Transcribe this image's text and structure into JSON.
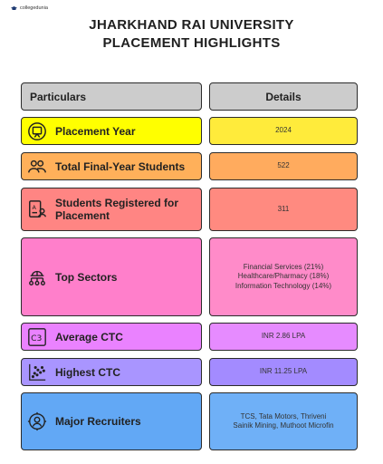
{
  "brand": "collegedunia",
  "title": {
    "line1": "JHARKHAND RAI UNIVERSITY",
    "line2": "PLACEMENT HIGHLIGHTS"
  },
  "header": {
    "left": "Particulars",
    "right": "Details"
  },
  "rows": [
    {
      "label": "Placement Year",
      "value": "2024",
      "icon": "presentation-icon",
      "color_left": "#ffff00",
      "color_right": "#ffeb3b"
    },
    {
      "label": "Total Final-Year Students",
      "value": "522",
      "icon": "group-icon",
      "color_left": "#ffb05a",
      "color_right": "#ffab5e"
    },
    {
      "label": "Students Registered for Placement",
      "value": "311",
      "icon": "registration-icon",
      "color_left": "#ff8583",
      "color_right": "#ff8a80"
    },
    {
      "label": "Top Sectors",
      "value_lines": [
        "Financial Services (21%)",
        "Healthcare/Pharmacy (18%)",
        "Information Technology (14%)"
      ],
      "icon": "network-icon",
      "color_left": "#ff7fcb",
      "color_right": "#ff8bc9"
    },
    {
      "label": "Average CTC",
      "value": "INR 2.86 LPA",
      "icon": "c3-icon",
      "color_left": "#ea82ff",
      "color_right": "#e68bff"
    },
    {
      "label": "Highest CTC",
      "value": "INR 11.25 LPA",
      "icon": "scatter-icon",
      "color_left": "#a995ff",
      "color_right": "#a38bff"
    },
    {
      "label": "Major Recruiters",
      "value_lines": [
        "TCS, Tata Motors, Thriveni",
        "Sainik Mining, Muthoot Microfin"
      ],
      "icon": "recruiter-icon",
      "color_left": "#62a8f5",
      "color_right": "#6fb0f7"
    }
  ]
}
